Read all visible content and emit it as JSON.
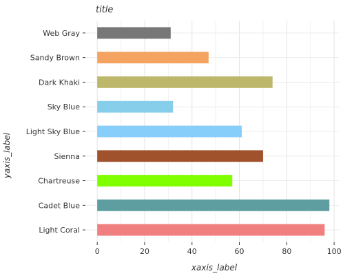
{
  "chart_data": {
    "type": "bar",
    "orientation": "horizontal",
    "title": "title",
    "xlabel": "xaxis_label",
    "ylabel": "yaxis_label",
    "xlim": [
      -5,
      102
    ],
    "xticks": [
      0,
      20,
      40,
      60,
      80,
      100
    ],
    "xtick_labels": [
      "0",
      "20",
      "40",
      "60",
      "80",
      "100"
    ],
    "grid": true,
    "categories": [
      "Web Gray",
      "Sandy Brown",
      "Dark Khaki",
      "Sky Blue",
      "Light Sky Blue",
      "Sienna",
      "Chartreuse",
      "Cadet Blue",
      "Light Coral"
    ],
    "values": [
      31,
      47,
      74,
      32,
      61,
      70,
      57,
      98,
      96
    ],
    "colors": [
      "#777777",
      "#f4a460",
      "#bdb76b",
      "#87ceeb",
      "#87cefa",
      "#a0522d",
      "#7fff00",
      "#5f9ea0",
      "#f08080"
    ]
  }
}
